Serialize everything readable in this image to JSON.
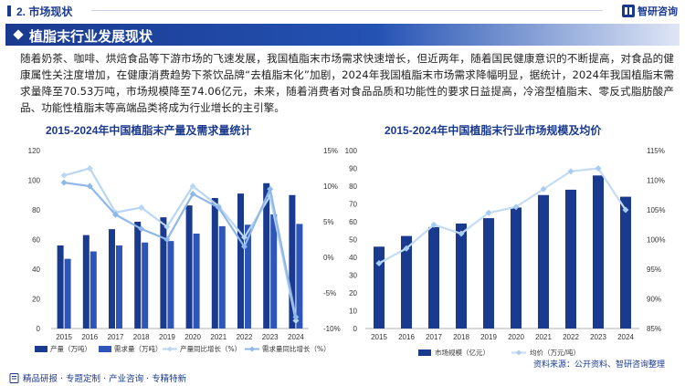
{
  "header": {
    "section_title": "2. 市场现状",
    "logo_text": "智研咨询",
    "logo_icon": "zhiyan-logo-icon"
  },
  "heading": {
    "title": "植脂末行业发展现状"
  },
  "paragraph": "随着奶茶、咖啡、烘焙食品等下游市场的飞速发展，我国植脂末市场需求快速增长，但近两年，随着国民健康意识的不断提高，对食品的健康属性关注度增加，在健康消费趋势下茶饮品牌“去植脂末化”加剧，2024年我国植脂末市场需求降幅明显，据统计，2024年我国植脂末需求量降至70.53万吨，市场规模降至74.06亿元，未来，随着消费者对食品品质和功能性的要求日益提高，冷溶型植脂末、零反式脂肪酸产品、功能性植脂末等高端品类将成为行业增长的主引擎。",
  "colors": {
    "dark_blue": "#1a3a8f",
    "light_blue_line": "#a9cdef",
    "mid_blue_line": "#8fb8e8"
  },
  "chart_data": [
    {
      "type": "bar",
      "title": "2015-2024年中国植脂末产量及需求量统计",
      "categories": [
        "2015",
        "2016",
        "2017",
        "2018",
        "2019",
        "2020",
        "2021",
        "2022",
        "2023",
        "2024"
      ],
      "series": [
        {
          "name": "产量（万吨）",
          "type": "bar",
          "axis": "left",
          "color": "#1a3a8f",
          "values": [
            56,
            63,
            67,
            72,
            75,
            83,
            88,
            91,
            98,
            90
          ]
        },
        {
          "name": "需求量（万吨）",
          "type": "bar",
          "axis": "left",
          "color": "#2e55b8",
          "values": [
            47,
            52,
            56,
            58,
            59,
            64,
            69,
            70,
            77,
            70.53
          ]
        },
        {
          "name": "产量同比增长（%）",
          "type": "line",
          "axis": "right",
          "color": "#b9d6f2",
          "values": [
            11.5,
            12.5,
            6.3,
            7.0,
            4.3,
            10.0,
            7.2,
            2.8,
            8.6,
            -8.9
          ]
        },
        {
          "name": "需求量同比增长（%）",
          "type": "line",
          "axis": "right",
          "color": "#8fb8e8",
          "values": [
            10.5,
            10.0,
            6.0,
            4.0,
            2.5,
            8.9,
            7.0,
            1.5,
            9.6,
            -8.4
          ]
        }
      ],
      "ylim_left": [
        0,
        120
      ],
      "yticks_left": [
        "0",
        "20",
        "40",
        "60",
        "80",
        "100",
        "120"
      ],
      "ylim_right": [
        -10,
        15
      ],
      "yticks_right": [
        "-10%",
        "-5%",
        "0%",
        "5%",
        "10%",
        "15%"
      ],
      "legend_position": "bottom"
    },
    {
      "type": "bar",
      "title": "2015-2024年中国植脂末行业市场规模及均价",
      "categories": [
        "2015",
        "2016",
        "2017",
        "2018",
        "2019",
        "2020",
        "2021",
        "2022",
        "2023",
        "2024"
      ],
      "series": [
        {
          "name": "市场规模（亿元）",
          "type": "bar",
          "axis": "left",
          "color": "#1a3a8f",
          "values": [
            46,
            52,
            57,
            59,
            62,
            68,
            75,
            78,
            86,
            74.06
          ]
        },
        {
          "name": "均价（万元/吨）",
          "type": "line",
          "axis": "right",
          "color": "#c3dcf3",
          "values": [
            96,
            98.5,
            102.5,
            101,
            104.5,
            105.5,
            108.5,
            111.5,
            112,
            105
          ]
        }
      ],
      "ylim_left": [
        0,
        100
      ],
      "yticks_left": [
        "0",
        "10",
        "20",
        "30",
        "40",
        "50",
        "60",
        "70",
        "80",
        "90",
        "100"
      ],
      "ylim_right": [
        85,
        115
      ],
      "yticks_right": [
        "85%",
        "90%",
        "95%",
        "100%",
        "105%",
        "110%",
        "115%"
      ],
      "legend_position": "bottom"
    }
  ],
  "source": "资料来源：公开资料、智研咨询整理",
  "footer": {
    "text": "精品研报 · 专题定制 · 产业咨询 · 专精特新",
    "icon": "report-icon"
  }
}
